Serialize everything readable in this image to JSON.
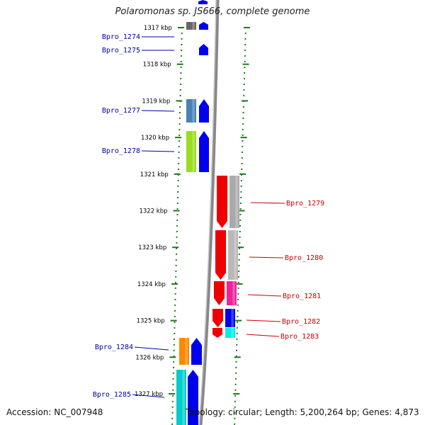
{
  "title": "Polaromonas sp. JS666, complete genome",
  "footer": {
    "accession": "Accession: NC_007948",
    "summary": "Topology: circular; Length: 5,200,264 bp; Genes: 4,873"
  },
  "colors": {
    "scale": "#1a7a1a",
    "backbone": "#888888",
    "forward_label": "#0000aa",
    "reverse_label": "#cc0000"
  },
  "kbp_ticks": [
    "1317 kbp",
    "1318 kbp",
    "1319 kbp",
    "1320 kbp",
    "1321 kbp",
    "1322 kbp",
    "1323 kbp",
    "1324 kbp",
    "1325 kbp",
    "1326 kbp",
    "1327 kbp"
  ],
  "genes": [
    {
      "label": "Bpro_1274",
      "strand": "forward",
      "color": "#0000ee",
      "cog_color": "#666666"
    },
    {
      "label": "Bpro_1275",
      "strand": "forward",
      "color": "#0000ee",
      "cog_color": ""
    },
    {
      "label": "Bpro_1277",
      "strand": "forward",
      "color": "#0000ee",
      "cog_color": "#4682b4"
    },
    {
      "label": "Bpro_1278",
      "strand": "forward",
      "color": "#0000ee",
      "cog_color": "#99dd22"
    },
    {
      "label": "Bpro_1279",
      "strand": "reverse",
      "color": "#ee0000",
      "cog_color": "#aaaaaa"
    },
    {
      "label": "Bpro_1280",
      "strand": "reverse",
      "color": "#ee0000",
      "cog_color": "#b8b8b8"
    },
    {
      "label": "Bpro_1281",
      "strand": "reverse",
      "color": "#ee0000",
      "cog_color": "#ee2299"
    },
    {
      "label": "Bpro_1282",
      "strand": "reverse",
      "color": "#ee0000",
      "cog_color": "#0000ee"
    },
    {
      "label": "Bpro_1283",
      "strand": "reverse",
      "color": "#ee0000",
      "cog_color": "#00eeee"
    },
    {
      "label": "Bpro_1284",
      "strand": "forward",
      "color": "#0000ee",
      "cog_color": "#ff8800"
    },
    {
      "label": "Bpro_1285",
      "strand": "forward",
      "color": "#0000ee",
      "cog_color": "#00cccc"
    }
  ]
}
